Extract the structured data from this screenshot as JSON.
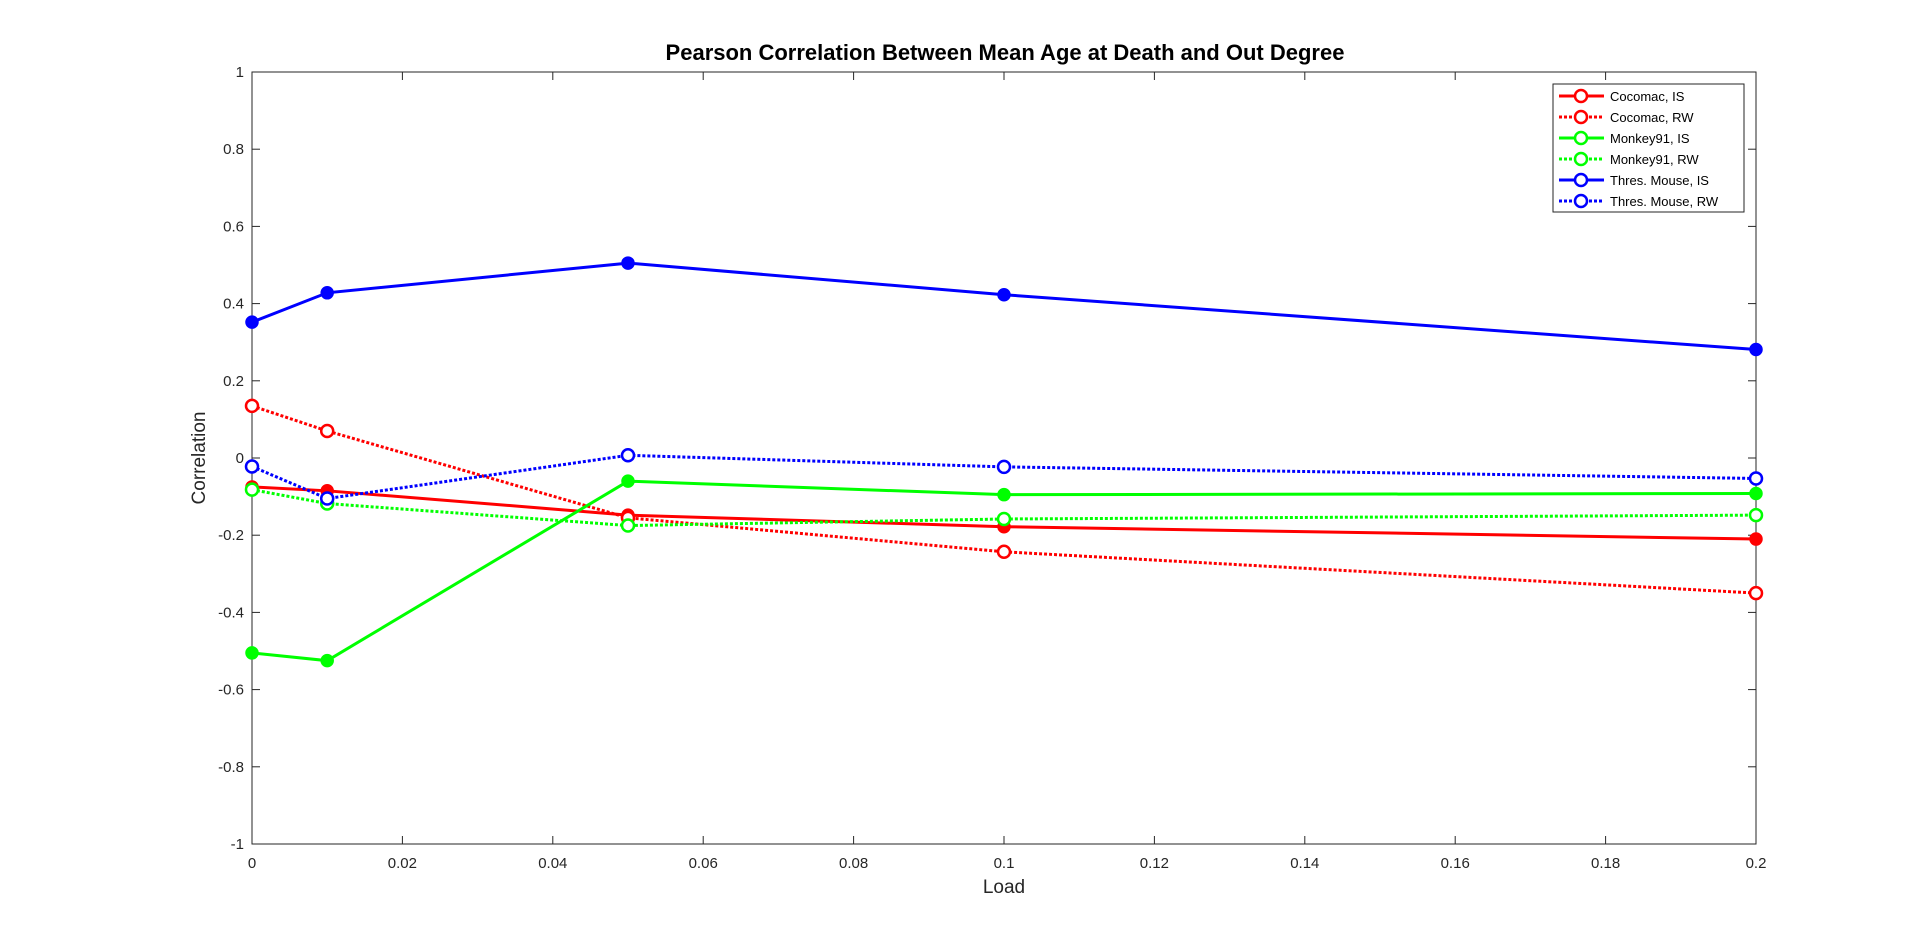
{
  "chart_data": {
    "type": "line",
    "title": "Pearson Correlation Between Mean Age at Death and Out Degree",
    "xlabel": "Load",
    "ylabel": "Correlation",
    "xlim": [
      0,
      0.2
    ],
    "ylim": [
      -1,
      1
    ],
    "x_ticks": [
      0,
      0.02,
      0.04,
      0.06,
      0.08,
      0.1,
      0.12,
      0.14,
      0.16,
      0.18,
      0.2
    ],
    "x_tick_labels": [
      "0",
      "0.02",
      "0.04",
      "0.06",
      "0.08",
      "0.1",
      "0.12",
      "0.14",
      "0.16",
      "0.18",
      "0.2"
    ],
    "y_ticks": [
      -1,
      -0.8,
      -0.6,
      -0.4,
      -0.2,
      0,
      0.2,
      0.4,
      0.6,
      0.8,
      1
    ],
    "y_tick_labels": [
      "-1",
      "-0.8",
      "-0.6",
      "-0.4",
      "-0.2",
      "0",
      "0.2",
      "0.4",
      "0.6",
      "0.8",
      "1"
    ],
    "grid": false,
    "legend_position": "top-right",
    "x": [
      0,
      0.01,
      0.05,
      0.1,
      0.2
    ],
    "series": [
      {
        "name": "Cocomac, IS",
        "color": "#ff0000",
        "line_style": "solid",
        "marker": "filled-circle",
        "values": [
          -0.075,
          -0.085,
          -0.148,
          -0.178,
          -0.21
        ]
      },
      {
        "name": "Cocomac, RW",
        "color": "#ff0000",
        "line_style": "dotted",
        "marker": "open-circle",
        "values": [
          0.135,
          0.07,
          -0.155,
          -0.243,
          -0.35
        ]
      },
      {
        "name": "Monkey91, IS",
        "color": "#00ff00",
        "line_style": "solid",
        "marker": "filled-circle",
        "values": [
          -0.505,
          -0.525,
          -0.06,
          -0.095,
          -0.092
        ]
      },
      {
        "name": "Monkey91, RW",
        "color": "#00ff00",
        "line_style": "dotted",
        "marker": "open-circle",
        "values": [
          -0.082,
          -0.118,
          -0.175,
          -0.158,
          -0.148
        ]
      },
      {
        "name": "Thres. Mouse, IS",
        "color": "#0000ff",
        "line_style": "solid",
        "marker": "filled-circle",
        "values": [
          0.352,
          0.428,
          0.505,
          0.423,
          0.281
        ]
      },
      {
        "name": "Thres. Mouse, RW",
        "color": "#0000ff",
        "line_style": "dotted",
        "marker": "open-circle",
        "values": [
          -0.022,
          -0.105,
          0.007,
          -0.023,
          -0.053
        ]
      }
    ]
  }
}
